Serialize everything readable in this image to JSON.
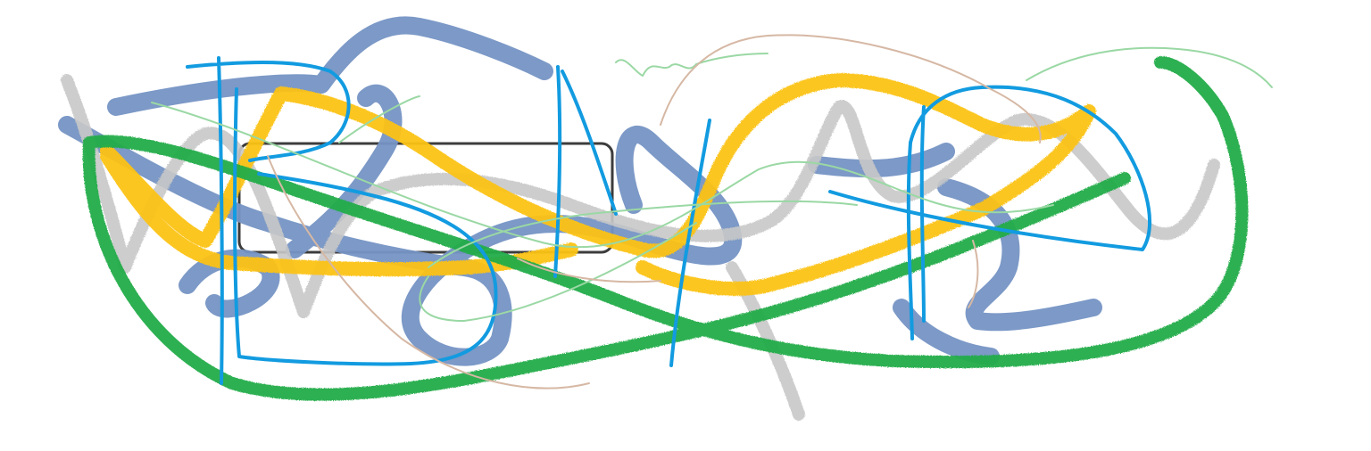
{
  "canvas": {
    "background": "#ffffff"
  },
  "palette": {
    "blue_thick": "#7594c4",
    "gray": "#c8c8c8",
    "yellow": "#fcc318",
    "green": "#22ac48",
    "cyan": "#129be0",
    "light_green": "#9ad8a4",
    "tan": "#d6b8a4",
    "box_outline": "#3c3c3c"
  }
}
